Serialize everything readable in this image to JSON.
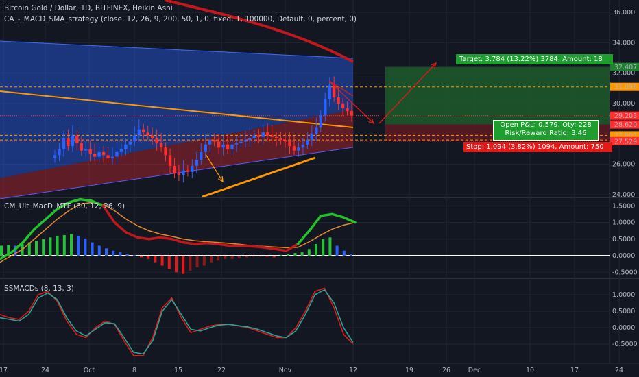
{
  "header": {
    "title": "Bitcoin Gold / Dollar, 1D, BITFINEX, Heikin Ashi",
    "strategy": "CA_-_MACD_SMA_strategy (close, 12, 26, 9, 200, 50, 1, 0, fixed, 1, 100000, Default, 0, percent, 0)"
  },
  "trade": {
    "target_label": "Target: 3.784 (13.22%) 3784, Amount: 18",
    "stop_label": "Stop: 1.094 (3.82%) 1094, Amount: 750",
    "pnl_label": "Open P&L: 0.579, Qty: 228",
    "rr_label": "Risk/Reward Ratio: 3.46"
  },
  "colors": {
    "bg": "#131722",
    "grid": "#1f2433",
    "up": "#2962ff",
    "down": "#ff2f2f",
    "target_fill": "#1e5a2a",
    "stop_fill": "#5a1a22",
    "orange": "#ff9800",
    "red_line": "#c0181c",
    "green_line": "#23c22a",
    "macd_signal": "#e68a2a",
    "teal": "#26a69a",
    "white": "#ffffff"
  },
  "x_axis": {
    "ticks": [
      "17",
      "24",
      "Oct",
      "8",
      "15",
      "22",
      "Nov",
      "12",
      "19",
      "26",
      "Dec",
      "10",
      "17",
      "24"
    ]
  },
  "chart_data": [
    {
      "type": "candlestick",
      "title": "Bitcoin Gold / Dollar, 1D, BITFINEX, Heikin Ashi",
      "ylim": [
        24,
        37
      ],
      "y_ticks": [
        "24.000",
        "26.000",
        "28.000",
        "30.000",
        "32.000",
        "34.000",
        "36.000"
      ],
      "price_tags": [
        {
          "value": 32.407,
          "label": "32.407",
          "color": "#1e7f2f"
        },
        {
          "value": 31.096,
          "label": "31.096",
          "color": "#ff9800"
        },
        {
          "value": 29.203,
          "label": "29.203",
          "color": "#ff2f2f"
        },
        {
          "value": 28.623,
          "label": "28.623",
          "color": "#363a45"
        },
        {
          "value": 28.62,
          "label": "28.620",
          "color": "#ff2f2f"
        },
        {
          "value": 27.907,
          "label": "27.907",
          "color": "#ff9800"
        },
        {
          "value": 27.604,
          "label": "27.604",
          "color": "#ff9800"
        },
        {
          "value": 27.529,
          "label": "27.529",
          "color": "#ff2f2f"
        }
      ],
      "candles_close": [
        26.6,
        27.0,
        27.7,
        27.2,
        27.9,
        27.4,
        26.9,
        27.0,
        26.7,
        26.5,
        26.8,
        26.6,
        26.4,
        26.5,
        26.8,
        27.0,
        27.3,
        27.5,
        27.9,
        28.3,
        28.1,
        27.9,
        27.7,
        27.4,
        27.1,
        26.6,
        25.9,
        25.4,
        25.3,
        25.6,
        25.5,
        25.9,
        26.3,
        26.8,
        27.3,
        27.6,
        27.5,
        27.1,
        27.3,
        27.0,
        27.3,
        27.4,
        27.5,
        27.6,
        27.7,
        27.9,
        27.8,
        28.1,
        27.9,
        27.8,
        27.7,
        27.6,
        27.5,
        27.2,
        26.9,
        27.1,
        27.3,
        27.6,
        28.0,
        28.4,
        29.2,
        30.3,
        31.2,
        30.4,
        30.0,
        29.7,
        29.5,
        29.2
      ],
      "target": 32.407,
      "entry": 28.623,
      "stop": 27.529
    },
    {
      "type": "bar",
      "title": "CM_Ult_MacD_MTF (60, 12, 26, 9)",
      "ylim": [
        -0.6,
        1.8
      ],
      "y_ticks": [
        "-0.5000",
        "0.0000",
        "0.5000",
        "1.0000",
        "1.5000"
      ],
      "histogram": [
        0.3,
        0.32,
        0.3,
        0.35,
        0.4,
        0.45,
        0.5,
        0.55,
        0.6,
        0.62,
        0.65,
        0.6,
        0.52,
        0.4,
        0.3,
        0.22,
        0.15,
        0.1,
        0.05,
        0.02,
        -0.05,
        -0.1,
        -0.2,
        -0.3,
        -0.4,
        -0.5,
        -0.55,
        -0.45,
        -0.35,
        -0.3,
        -0.2,
        -0.15,
        -0.1,
        -0.1,
        -0.08,
        -0.05,
        -0.03,
        -0.02,
        -0.03,
        -0.05,
        0.02,
        0.05,
        0.08,
        0.1,
        0.2,
        0.35,
        0.5,
        0.55,
        0.3,
        0.15,
        0.05
      ],
      "macd": [
        -0.1,
        0.1,
        0.4,
        0.8,
        1.1,
        1.4,
        1.6,
        1.7,
        1.65,
        1.5,
        1.0,
        0.7,
        0.55,
        0.5,
        0.55,
        0.5,
        0.4,
        0.35,
        0.38,
        0.35,
        0.3,
        0.3,
        0.28,
        0.25,
        0.2,
        0.15,
        0.35,
        0.75,
        1.2,
        1.25,
        1.15,
        1.0
      ],
      "signal": [
        -0.2,
        0.0,
        0.2,
        0.5,
        0.8,
        1.1,
        1.35,
        1.55,
        1.6,
        1.55,
        1.35,
        1.1,
        0.9,
        0.75,
        0.65,
        0.58,
        0.5,
        0.45,
        0.42,
        0.4,
        0.37,
        0.34,
        0.3,
        0.28,
        0.26,
        0.24,
        0.25,
        0.42,
        0.62,
        0.8,
        0.92,
        1.0
      ]
    },
    {
      "type": "line",
      "title": "SSMACDs (8, 13, 3)",
      "ylim": [
        -1.0,
        1.5
      ],
      "y_ticks": [
        "-0.5000",
        "0.0000",
        "0.5000",
        "1.0000"
      ],
      "red": [
        0.4,
        0.3,
        0.25,
        0.5,
        1.0,
        1.1,
        0.8,
        0.2,
        -0.2,
        -0.3,
        0.0,
        0.2,
        0.1,
        -0.4,
        -0.85,
        -0.85,
        -0.3,
        0.6,
        0.9,
        0.3,
        -0.15,
        -0.05,
        0.05,
        0.1,
        0.1,
        0.05,
        0.0,
        -0.1,
        -0.2,
        -0.3,
        -0.3,
        0.0,
        0.5,
        1.1,
        1.2,
        0.6,
        -0.2,
        -0.5
      ],
      "teal": [
        0.3,
        0.25,
        0.2,
        0.4,
        0.9,
        1.05,
        0.85,
        0.3,
        -0.1,
        -0.25,
        -0.05,
        0.15,
        0.12,
        -0.3,
        -0.75,
        -0.8,
        -0.4,
        0.5,
        0.85,
        0.4,
        -0.05,
        -0.1,
        0.0,
        0.08,
        0.1,
        0.06,
        0.02,
        -0.05,
        -0.15,
        -0.25,
        -0.3,
        -0.1,
        0.4,
        1.0,
        1.15,
        0.75,
        0.0,
        -0.45
      ]
    }
  ],
  "pane2": {
    "title": "CM_Ult_MacD_MTF (60, 12, 26, 9)"
  },
  "pane3": {
    "title": "SSMACDs (8, 13, 3)"
  }
}
